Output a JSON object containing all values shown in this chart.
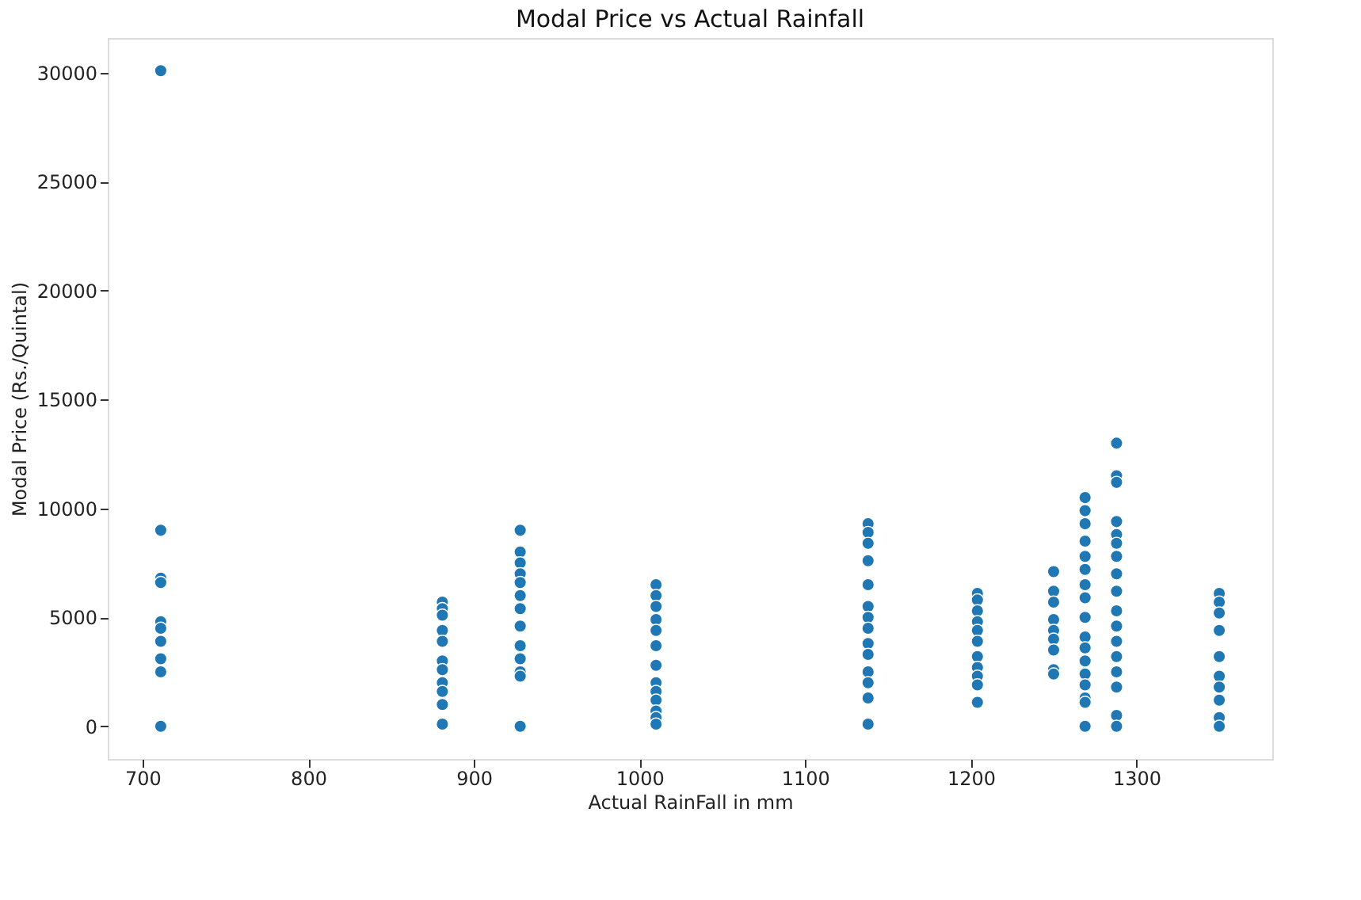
{
  "chart_data": {
    "type": "scatter",
    "title": "Modal Price vs Actual Rainfall",
    "xlabel": "Actual RainFall in mm",
    "ylabel": "Modal Price (Rs./Quintal)",
    "xlim": [
      679,
      1382
    ],
    "xticks": [
      700,
      800,
      900,
      1000,
      1100,
      1200,
      1300
    ],
    "ylim": [
      -1500,
      31600
    ],
    "yticks": [
      0,
      5000,
      10000,
      15000,
      20000,
      25000,
      30000
    ],
    "grid": false,
    "legend": false,
    "marker": "circle",
    "series": [
      {
        "color": "#1f77b4",
        "x": [
          711,
          711,
          711,
          711,
          711,
          711,
          711,
          711,
          711,
          711,
          881,
          881,
          881,
          881,
          881,
          881,
          881,
          881,
          881,
          881,
          881,
          928,
          928,
          928,
          928,
          928,
          928,
          928,
          928,
          928,
          928,
          928,
          928,
          928,
          1010,
          1010,
          1010,
          1010,
          1010,
          1010,
          1010,
          1010,
          1010,
          1010,
          1010,
          1010,
          1010,
          1138,
          1138,
          1138,
          1138,
          1138,
          1138,
          1138,
          1138,
          1138,
          1138,
          1138,
          1138,
          1138,
          1138,
          1204,
          1204,
          1204,
          1204,
          1204,
          1204,
          1204,
          1204,
          1204,
          1204,
          1204,
          1250,
          1250,
          1250,
          1250,
          1250,
          1250,
          1250,
          1250,
          1250,
          1269,
          1269,
          1269,
          1269,
          1269,
          1269,
          1269,
          1269,
          1269,
          1269,
          1269,
          1269,
          1269,
          1269,
          1269,
          1269,
          1269,
          1288,
          1288,
          1288,
          1288,
          1288,
          1288,
          1288,
          1288,
          1288,
          1288,
          1288,
          1288,
          1288,
          1288,
          1288,
          1288,
          1288,
          1350,
          1350,
          1350,
          1350,
          1350,
          1350,
          1350,
          1350,
          1350,
          1350
        ],
        "values": [
          30100,
          9000,
          6800,
          6600,
          4800,
          4500,
          3900,
          3100,
          2500,
          0,
          5700,
          5400,
          5100,
          4400,
          3900,
          3000,
          2600,
          2000,
          1600,
          1000,
          100,
          9000,
          8000,
          7500,
          7000,
          6600,
          6000,
          5400,
          4600,
          3700,
          3100,
          2500,
          2300,
          0,
          6500,
          6000,
          5500,
          4900,
          4400,
          3700,
          2800,
          2000,
          1600,
          1200,
          700,
          400,
          100,
          9300,
          8900,
          8400,
          7600,
          6500,
          5500,
          5000,
          4500,
          3800,
          3300,
          2500,
          2000,
          1300,
          100,
          6100,
          5800,
          5300,
          4800,
          4400,
          3900,
          3200,
          2700,
          2300,
          1900,
          1100,
          7100,
          6200,
          5700,
          4900,
          4400,
          4000,
          3500,
          2600,
          2400,
          10500,
          9900,
          9300,
          8500,
          7800,
          7200,
          6500,
          5900,
          5000,
          4100,
          3600,
          3000,
          2400,
          1900,
          1300,
          1100,
          0,
          13000,
          11500,
          11200,
          9400,
          8800,
          8400,
          7800,
          7000,
          6200,
          5300,
          4600,
          3900,
          3200,
          2500,
          1800,
          500,
          0,
          6100,
          5700,
          5200,
          4400,
          3200,
          2300,
          1800,
          1200,
          400,
          0
        ]
      }
    ]
  }
}
